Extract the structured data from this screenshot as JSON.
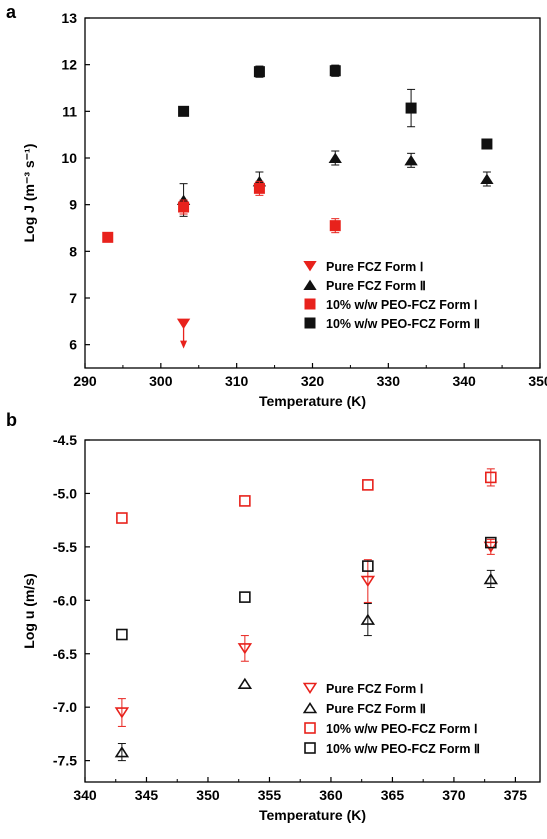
{
  "figure": {
    "panel_a_label": "a",
    "panel_b_label": "b"
  },
  "colors": {
    "red": "#e8221c",
    "black": "#111111",
    "gray": "#777777"
  },
  "chart_data": [
    {
      "type": "scatter",
      "panel": "a",
      "xlabel": "Temperature (K)",
      "ylabel": "Log J (m⁻³ s⁻¹)",
      "xlim": [
        290,
        350
      ],
      "ylim": [
        5.5,
        13
      ],
      "xticks": [
        290,
        300,
        310,
        320,
        330,
        340,
        350
      ],
      "yticks": [
        6,
        7,
        8,
        9,
        10,
        11,
        12,
        13
      ],
      "legend_position": "lower-right",
      "series": [
        {
          "name": "Pure FCZ Form Ⅰ",
          "marker": "triangle-down",
          "filled": true,
          "color": "#e8221c",
          "x": [
            303
          ],
          "y": [
            6.45
          ],
          "err": [
            0
          ],
          "arrow_down": [
            true
          ]
        },
        {
          "name": "Pure FCZ Form Ⅱ",
          "marker": "triangle-up",
          "filled": true,
          "color": "#111111",
          "x": [
            303,
            313,
            323,
            333,
            343
          ],
          "y": [
            9.1,
            9.5,
            10.0,
            9.95,
            9.55
          ],
          "err": [
            0.35,
            0.2,
            0.15,
            0.15,
            0.15
          ]
        },
        {
          "name": "10% w/w PEO-FCZ Form Ⅰ",
          "marker": "square",
          "filled": true,
          "color": "#e8221c",
          "x": [
            293,
            303,
            313,
            323
          ],
          "y": [
            8.3,
            8.95,
            9.35,
            8.55
          ],
          "err": [
            0,
            0.15,
            0.15,
            0.15
          ]
        },
        {
          "name": "10% w/w PEO-FCZ Form Ⅱ",
          "marker": "square",
          "filled": true,
          "color": "#111111",
          "x": [
            303,
            313,
            323,
            333,
            343
          ],
          "y": [
            11.0,
            11.85,
            11.87,
            11.07,
            10.3
          ],
          "err": [
            0,
            0.12,
            0.12,
            0.4,
            0
          ]
        }
      ]
    },
    {
      "type": "scatter",
      "panel": "b",
      "xlabel": "Temperature (K)",
      "ylabel": "Log u (m/s)",
      "xlim": [
        340,
        377
      ],
      "ylim": [
        -7.7,
        -4.5
      ],
      "xticks": [
        340,
        345,
        350,
        355,
        360,
        365,
        370,
        375
      ],
      "yticks": [
        -4.5,
        -5.0,
        -5.5,
        -6.0,
        -6.5,
        -7.0,
        -7.5
      ],
      "legend_position": "lower-right",
      "series": [
        {
          "name": "Pure FCZ Form Ⅰ",
          "marker": "triangle-down",
          "filled": false,
          "color": "#e8221c",
          "x": [
            343,
            353,
            363,
            373
          ],
          "y": [
            -7.05,
            -6.45,
            -5.82,
            -5.5
          ],
          "err": [
            0.13,
            0.12,
            0.2,
            0.07
          ]
        },
        {
          "name": "Pure FCZ Form Ⅱ",
          "marker": "triangle-up",
          "filled": false,
          "color": "#111111",
          "x": [
            343,
            353,
            363,
            373
          ],
          "y": [
            -7.42,
            -6.78,
            -6.18,
            -5.8
          ],
          "err": [
            0.08,
            0,
            0.15,
            0.08
          ]
        },
        {
          "name": "10% w/w PEO-FCZ Form Ⅰ",
          "marker": "square",
          "filled": false,
          "color": "#e8221c",
          "x": [
            343,
            353,
            363,
            373
          ],
          "y": [
            -5.23,
            -5.07,
            -4.92,
            -4.85
          ],
          "err": [
            0,
            0,
            0,
            0.08
          ]
        },
        {
          "name": "10% w/w PEO-FCZ Form Ⅱ",
          "marker": "square",
          "filled": false,
          "color": "#111111",
          "x": [
            343,
            353,
            363,
            373
          ],
          "y": [
            -6.32,
            -5.97,
            -5.68,
            -5.46
          ],
          "err": [
            0,
            0,
            0,
            0
          ]
        }
      ]
    }
  ]
}
